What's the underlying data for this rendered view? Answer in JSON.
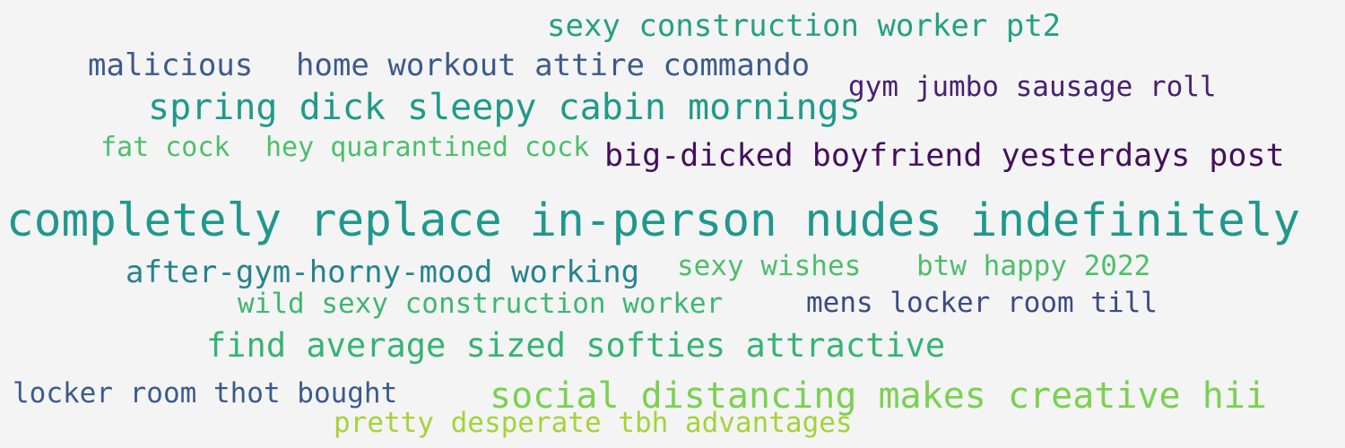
{
  "word_cloud": {
    "background": "#f4f4f4",
    "phrases": [
      {
        "text": "sexy construction worker pt2",
        "color": "#23a083"
      },
      {
        "text": "malicious",
        "color": "#3b5a8c"
      },
      {
        "text": "home workout attire commando",
        "color": "#3b5a8c"
      },
      {
        "text": "gym jumbo sausage roll",
        "color": "#482071"
      },
      {
        "text": "spring dick sleepy cabin mornings",
        "color": "#1f9a8a"
      },
      {
        "text": "fat cock",
        "color": "#4cbf6a"
      },
      {
        "text": "hey quarantined cock",
        "color": "#4cbf6a"
      },
      {
        "text": "big-dicked boyfriend yesterdays post",
        "color": "#440f5c"
      },
      {
        "text": "completely replace in-person nudes indefinitely",
        "color": "#20988c"
      },
      {
        "text": "after-gym-horny-mood working",
        "color": "#25838e"
      },
      {
        "text": "sexy wishes",
        "color": "#4cbf6a"
      },
      {
        "text": "btw happy 2022",
        "color": "#4cbf6a"
      },
      {
        "text": "wild sexy construction worker",
        "color": "#3fb770"
      },
      {
        "text": "mens locker room till",
        "color": "#3a4a85"
      },
      {
        "text": "find average sized softies attractive",
        "color": "#35b473"
      },
      {
        "text": "locker room thot bought",
        "color": "#3b5a8c"
      },
      {
        "text": "social distancing makes creative hii",
        "color": "#7ad151"
      },
      {
        "text": "pretty desperate tbh advantages",
        "color": "#a4d33a"
      }
    ]
  }
}
